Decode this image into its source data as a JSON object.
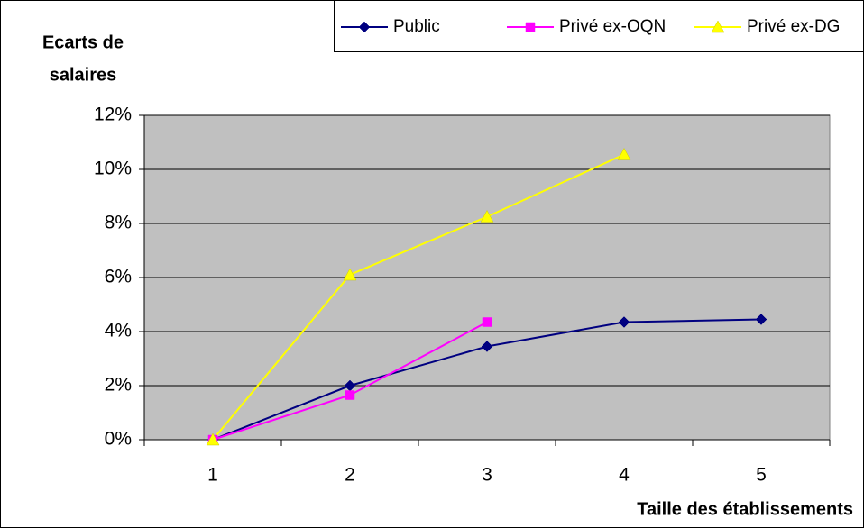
{
  "chart_data": {
    "type": "line",
    "ylabel": [
      "Ecarts de",
      "salaires"
    ],
    "xlabel": "Taille des établissements",
    "categories": [
      "1",
      "2",
      "3",
      "4",
      "5"
    ],
    "series": [
      {
        "name": "Public",
        "color": "#000080",
        "marker": "diamond",
        "values": [
          0,
          2.0,
          3.45,
          4.35,
          4.45
        ]
      },
      {
        "name": "Privé ex-OQN",
        "color": "#ff00ff",
        "marker": "square",
        "values": [
          0,
          1.65,
          4.35,
          null,
          null
        ]
      },
      {
        "name": "Privé ex-DG",
        "color": "#ffff00",
        "marker": "triangle",
        "values": [
          0,
          6.1,
          8.25,
          10.55,
          null
        ]
      }
    ],
    "ylim": [
      0,
      12
    ],
    "yticks": [
      {
        "value": 0,
        "label": "0%"
      },
      {
        "value": 2,
        "label": "2%"
      },
      {
        "value": 4,
        "label": "4%"
      },
      {
        "value": 6,
        "label": "6%"
      },
      {
        "value": 8,
        "label": "8%"
      },
      {
        "value": 10,
        "label": "10%"
      },
      {
        "value": 12,
        "label": "12%"
      }
    ],
    "grid": true,
    "legend": "top-right"
  }
}
